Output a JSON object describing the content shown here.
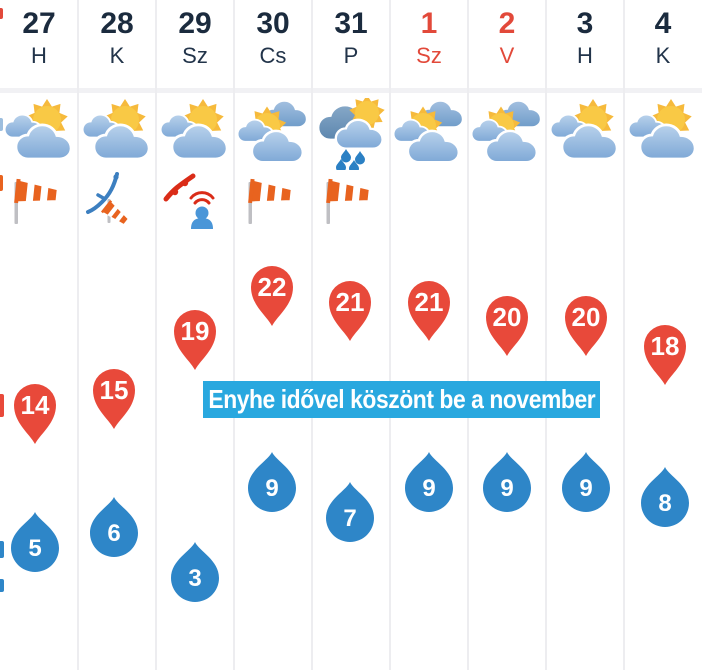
{
  "widget": {
    "banner": {
      "text": "Enyhe idővel köszönt be a november"
    }
  },
  "days": [
    {
      "date": "27",
      "abbr": "H",
      "weekend": false,
      "weather_icon": "partly-cloudy",
      "wind_icon": "strong-wind-windsock",
      "high_c": 14,
      "low_c": 5
    },
    {
      "date": "28",
      "abbr": "K",
      "weekend": false,
      "weather_icon": "partly-cloudy",
      "wind_icon": "front-with-windsock",
      "high_c": 15,
      "low_c": 6
    },
    {
      "date": "29",
      "abbr": "Sz",
      "weekend": false,
      "weather_icon": "partly-cloudy",
      "wind_icon": "front-effect-person",
      "high_c": 19,
      "low_c": 3
    },
    {
      "date": "30",
      "abbr": "Cs",
      "weekend": false,
      "weather_icon": "mostly-cloudy",
      "wind_icon": "strong-wind-windsock",
      "high_c": 22,
      "low_c": 9
    },
    {
      "date": "31",
      "abbr": "P",
      "weekend": false,
      "weather_icon": "rain-showers",
      "wind_icon": "strong-wind-windsock",
      "high_c": 21,
      "low_c": 7
    },
    {
      "date": "1",
      "abbr": "Sz",
      "weekend": true,
      "weather_icon": "mostly-cloudy",
      "wind_icon": null,
      "high_c": 21,
      "low_c": 9
    },
    {
      "date": "2",
      "abbr": "V",
      "weekend": true,
      "weather_icon": "mostly-cloudy",
      "wind_icon": null,
      "high_c": 20,
      "low_c": 9
    },
    {
      "date": "3",
      "abbr": "H",
      "weekend": false,
      "weather_icon": "partly-cloudy",
      "wind_icon": null,
      "high_c": 20,
      "low_c": 9
    },
    {
      "date": "4",
      "abbr": "K",
      "weekend": false,
      "weather_icon": "partly-cloudy",
      "wind_icon": null,
      "high_c": 18,
      "low_c": 8
    }
  ],
  "colors": {
    "high_marker_red": "#e8493a",
    "low_marker_blue": "#2e86c8",
    "banner_blue": "#29a8df",
    "header_navy": "#1b2b3e",
    "weekend_red": "#e2493a"
  }
}
